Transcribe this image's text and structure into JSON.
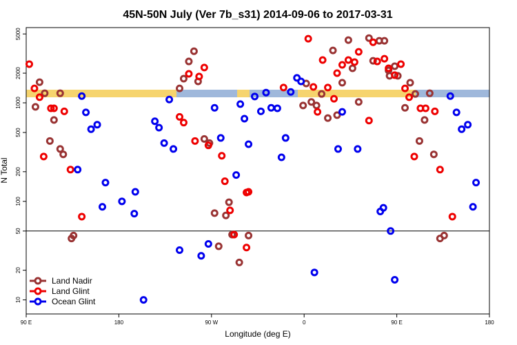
{
  "chart_data": {
    "type": "scatter",
    "title": "45N-50N July (Ver 7b_s31)   2014-09-06 to 2017-03-31",
    "x_label": "Longitude (deg E)",
    "y_label": "N Total",
    "xlim": [
      90,
      540
    ],
    "xticks": [
      {
        "value": 90,
        "label": "90 E"
      },
      {
        "value": 180,
        "label": "180"
      },
      {
        "value": 270,
        "label": "90 W"
      },
      {
        "value": 360,
        "label": "0"
      },
      {
        "value": 450,
        "label": "90 E"
      },
      {
        "value": 540,
        "label": "180"
      }
    ],
    "ylim": [
      7.2,
      5800
    ],
    "yticks": [
      10,
      20,
      50,
      100,
      200,
      500,
      1000,
      2000,
      5000
    ],
    "log_y": true,
    "hline": 50,
    "legend": "bottom-left",
    "series": [
      {
        "name": "Land Nadir",
        "color": "#993333",
        "x": [
          99,
          103,
          108,
          113,
          117,
          123,
          123,
          126,
          134,
          136,
          239,
          243,
          248,
          253,
          257,
          263,
          268,
          273,
          277,
          284,
          287,
          290,
          297,
          306,
          359,
          362,
          367,
          372,
          377,
          383,
          388,
          392,
          397,
          403,
          407,
          413,
          423,
          427,
          433,
          438,
          442,
          443,
          448,
          451,
          458,
          463,
          468,
          472,
          477,
          482,
          486,
          492,
          496
        ],
        "values": [
          910,
          1620,
          1250,
          410,
          670,
          1250,
          340,
          300,
          42,
          45,
          1400,
          1760,
          2630,
          3340,
          1650,
          430,
          390,
          76,
          35,
          72,
          98,
          46,
          24,
          45,
          940,
          1570,
          1020,
          940,
          1230,
          700,
          3400,
          750,
          1600,
          4330,
          2240,
          1020,
          4540,
          2670,
          4260,
          4260,
          2130,
          1880,
          2350,
          1880,
          890,
          1600,
          1230,
          410,
          670,
          1250,
          300,
          42,
          45
        ]
      },
      {
        "name": "Land Glint",
        "color": "#ee0000",
        "x": [
          93,
          98,
          103,
          107,
          114,
          117,
          127,
          133,
          144,
          239,
          243,
          248,
          254,
          258,
          263,
          267,
          280,
          283,
          288,
          292,
          304,
          304,
          306,
          340,
          364,
          369,
          373,
          378,
          383,
          389,
          392,
          397,
          403,
          409,
          413,
          423,
          427,
          431,
          438,
          442,
          448,
          454,
          458,
          462,
          467,
          473,
          478,
          487,
          492,
          504
        ],
        "values": [
          2470,
          1400,
          1140,
          285,
          880,
          880,
          820,
          210,
          70,
          720,
          630,
          1970,
          410,
          1850,
          2280,
          370,
          290,
          160,
          81,
          46,
          123,
          34,
          125,
          1430,
          4470,
          1450,
          810,
          2720,
          1430,
          1100,
          2000,
          2430,
          2720,
          2590,
          3290,
          660,
          4120,
          2630,
          2800,
          2240,
          1910,
          2470,
          1400,
          1140,
          285,
          880,
          880,
          820,
          210,
          70
        ]
      },
      {
        "name": "Ocean Glint",
        "color": "#0000ee",
        "x": [
          140,
          144,
          148,
          153,
          159,
          164,
          167,
          183,
          195,
          196,
          204,
          215,
          219,
          224,
          229,
          233,
          239,
          260,
          267,
          273,
          279,
          294,
          298,
          302,
          306,
          312,
          318,
          323,
          328,
          334,
          338,
          342,
          347,
          353,
          357,
          370,
          393,
          397,
          412,
          434,
          437,
          444,
          448,
          502,
          508,
          513,
          519,
          524,
          527
        ],
        "values": [
          210,
          1170,
          800,
          540,
          600,
          88,
          155,
          100,
          75,
          125,
          10,
          650,
          560,
          390,
          1080,
          340,
          32,
          28,
          37,
          890,
          440,
          185,
          970,
          690,
          380,
          1160,
          820,
          1270,
          890,
          880,
          280,
          440,
          1290,
          1790,
          1650,
          19,
          340,
          810,
          340,
          79,
          86,
          50,
          16,
          1170,
          800,
          540,
          600,
          88,
          155
        ]
      }
    ]
  }
}
